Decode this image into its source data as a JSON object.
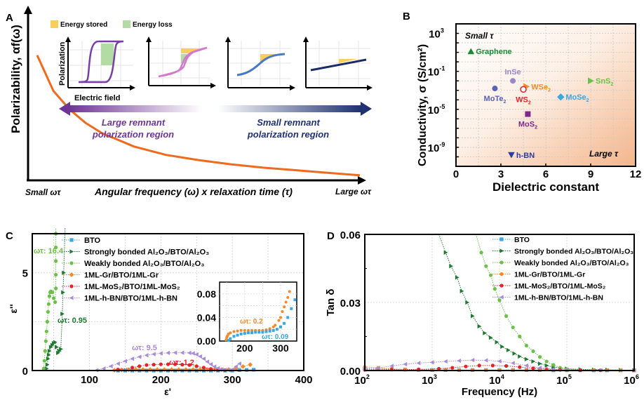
{
  "figure": {
    "panel_labels": [
      "A",
      "B",
      "C",
      "D"
    ]
  },
  "chart_data": [
    {
      "panel": "A",
      "type": "line",
      "title": "",
      "ylabel": "Polarizability, αf(ω)",
      "xlabel": "Angular frequency (ω) x relaxation time (τ)",
      "x_left_label": "Small ωτ",
      "x_right_label": "Large ωτ",
      "curve": {
        "name": "polarizability",
        "color": "#f06a1e",
        "x": [
          0.0,
          0.05,
          0.1,
          0.15,
          0.2,
          0.3,
          0.4,
          0.5,
          0.6,
          0.7,
          0.8,
          0.9,
          1.0
        ],
        "y": [
          0.74,
          0.53,
          0.42,
          0.34,
          0.28,
          0.2,
          0.15,
          0.12,
          0.095,
          0.075,
          0.06,
          0.045,
          0.03
        ]
      },
      "inset_legend": [
        {
          "label": "Energy stored",
          "color": "#f7cf5a"
        },
        {
          "label": "Energy loss",
          "color": "#b3dba4"
        }
      ],
      "inset_axes": {
        "ylabel": "Polarization",
        "xlabel": "Electric field"
      },
      "insets": [
        {
          "loop": "wide-hysteresis",
          "color": "#7a3fa6"
        },
        {
          "loop": "narrow-hysteresis",
          "color": "#d27ac9"
        },
        {
          "loop": "s-curve",
          "color": "#4a79c2"
        },
        {
          "loop": "linear",
          "color": "#1c2b63"
        }
      ],
      "arrows": [
        {
          "direction": "left",
          "label_line1": "Large remnant",
          "label_line2": "polarization region",
          "color": "#6f3596"
        },
        {
          "direction": "right",
          "label_line1": "Small remnant",
          "label_line2": "polarization region",
          "color": "#1f3170"
        }
      ]
    },
    {
      "panel": "B",
      "type": "scatter",
      "xlabel": "Dielectric constant",
      "ylabel": "Conductivity, σ (S/cm²)",
      "xlim": [
        0,
        12
      ],
      "ylim_log10": [
        -11,
        4
      ],
      "xticks": [
        0,
        3,
        6,
        9,
        12
      ],
      "yticks": [
        {
          "value": 3,
          "label": "10",
          "exp": "3"
        },
        {
          "value": -1,
          "label": "10",
          "exp": "-1"
        },
        {
          "value": -5,
          "label": "10",
          "exp": "-5"
        },
        {
          "value": -9,
          "label": "10",
          "exp": "-9"
        }
      ],
      "corner_labels": {
        "top_left": "Small τ",
        "bottom_right": "Large τ"
      },
      "grid": true,
      "points": [
        {
          "name": "Graphene",
          "sub": "",
          "x": 1.0,
          "log10y": 1.1,
          "marker": "triangle-up",
          "color": "#1d8a33"
        },
        {
          "name": "InSe",
          "sub": "",
          "x": 3.8,
          "log10y": -2.0,
          "marker": "half-circle",
          "color": "#9a86c8",
          "label_pos": "above"
        },
        {
          "name": "WSe",
          "sub": "2",
          "x": 4.7,
          "log10y": -2.6,
          "marker": "half-triangle",
          "color": "#f2892a"
        },
        {
          "name": "WS",
          "sub": "2",
          "x": 4.5,
          "log10y": -2.9,
          "marker": "half-circle-open",
          "color": "#e2232a",
          "label_pos": "below"
        },
        {
          "name": "MoTe",
          "sub": "2",
          "x": 2.6,
          "log10y": -2.8,
          "marker": "half-circle",
          "color": "#5a63b5",
          "label_pos": "below"
        },
        {
          "name": "MoSe",
          "sub": "2",
          "x": 7.0,
          "log10y": -3.7,
          "marker": "half-diamond",
          "color": "#3ba6df"
        },
        {
          "name": "SnS",
          "sub": "2",
          "x": 9.0,
          "log10y": -2.0,
          "marker": "triangle-right",
          "color": "#6cc04a"
        },
        {
          "name": "MoS",
          "sub": "2",
          "x": 4.8,
          "log10y": -5.5,
          "marker": "half-square",
          "color": "#7d2a8a",
          "label_pos": "below"
        },
        {
          "name": "h-BN",
          "sub": "",
          "x": 3.7,
          "log10y": -9.8,
          "marker": "triangle-down",
          "color": "#2b3fa3"
        }
      ]
    },
    {
      "panel": "C",
      "type": "scatter",
      "xlabel": "ε'",
      "ylabel": "ε''",
      "xlim": [
        20,
        400
      ],
      "ylim": [
        0,
        7
      ],
      "xticks": [
        100,
        200,
        300,
        400
      ],
      "yticks": [
        0,
        5
      ],
      "grid": true,
      "legend_position": "top-left",
      "series": [
        {
          "name": "BTO",
          "color": "#3ba6df",
          "marker": "square",
          "x": [
            140,
            150,
            160,
            170,
            180,
            190,
            200,
            210,
            220,
            230,
            240,
            250,
            260,
            270,
            280,
            290,
            300,
            310,
            320,
            330
          ],
          "y": [
            0,
            0,
            0,
            0,
            0,
            0,
            0,
            0,
            0,
            0,
            0,
            0,
            0,
            0,
            0,
            0,
            0,
            0.02,
            0.03,
            0.04
          ]
        },
        {
          "name": "Strongly bonded Al₂O₃/BTO/Al₂O₃",
          "color": "#1e7a30",
          "marker": "triangle-right",
          "x": [
            40,
            41,
            42,
            43,
            44,
            46,
            48,
            50,
            52,
            54,
            56,
            58,
            60,
            62,
            63,
            64,
            66
          ],
          "y": [
            0.1,
            0.3,
            0.6,
            0.8,
            1.0,
            1.2,
            1.3,
            1.4,
            1.45,
            1.2,
            0.9,
            1.0,
            1.1,
            2.9,
            4.0,
            5.0,
            7.5
          ]
        },
        {
          "name": "Weakly bonded Al₂O₃/BTO/Al₂O₃",
          "color": "#6cc04a",
          "marker": "circle",
          "x": [
            36,
            37,
            38,
            39,
            40,
            41,
            42,
            43,
            44,
            45,
            46,
            48,
            50,
            52,
            53,
            53,
            53,
            53,
            53,
            53
          ],
          "y": [
            0.1,
            0.5,
            1.0,
            1.5,
            2.0,
            2.5,
            3.0,
            3.4,
            3.8,
            4.0,
            4.05,
            4.0,
            3.7,
            3.5,
            4.2,
            4.9,
            5.6,
            6.3,
            7.0,
            7.5
          ]
        },
        {
          "name": "1ML-Gr/BTO/1ML-Gr",
          "color": "#f2892a",
          "marker": "diamond",
          "x": [
            135,
            145,
            155,
            165,
            175,
            185,
            195,
            205,
            215,
            225,
            235,
            245,
            255,
            265,
            275,
            285,
            295,
            305,
            315,
            325
          ],
          "y": [
            0.02,
            0.03,
            0.04,
            0.05,
            0.05,
            0.05,
            0.05,
            0.05,
            0.05,
            0.05,
            0.05,
            0.05,
            0.05,
            0.05,
            0.05,
            0.05,
            0.05,
            0.1,
            0.2,
            0.3
          ]
        },
        {
          "name": "1ML-MoS₂/BTO/1ML-MoS₂",
          "color": "#e2232a",
          "marker": "circle",
          "x": [
            140,
            160,
            170,
            180,
            190,
            200,
            210,
            220,
            230,
            240,
            250,
            260,
            270,
            280,
            290
          ],
          "y": [
            0.05,
            0.15,
            0.22,
            0.28,
            0.3,
            0.32,
            0.32,
            0.32,
            0.3,
            0.28,
            0.22,
            0.15,
            0.08,
            0.04,
            0.02
          ]
        },
        {
          "name": "1ML-h-BN/BTO/1ML-h-BN",
          "color": "#a98bd6",
          "marker": "triangle-left",
          "x": [
            110,
            120,
            130,
            140,
            150,
            160,
            170,
            180,
            190,
            200,
            210,
            220,
            230,
            240,
            245,
            250,
            255,
            260,
            265,
            270,
            275,
            280,
            285,
            290,
            295,
            300,
            305,
            310
          ],
          "y": [
            0.02,
            0.1,
            0.22,
            0.35,
            0.48,
            0.6,
            0.7,
            0.78,
            0.84,
            0.88,
            0.9,
            0.91,
            0.91,
            0.9,
            0.88,
            0.82,
            0.72,
            0.6,
            0.45,
            0.32,
            0.2,
            0.12,
            0.06,
            0.03,
            0.02,
            0.05,
            0.2,
            0.35
          ]
        }
      ],
      "annotations": [
        {
          "text": "ωτ: 16.4",
          "color": "#6cc04a"
        },
        {
          "text": "ωτ: 0.95",
          "color": "#1e7a30"
        },
        {
          "text": "ωτ: 9.5",
          "color": "#a98bd6"
        },
        {
          "text": "ωτ: 1.2",
          "color": "#e2232a"
        }
      ],
      "inset": {
        "xlim": [
          130,
          345
        ],
        "ylim": [
          0,
          0.1
        ],
        "xticks": [
          200,
          300
        ],
        "yticks": [
          0.0,
          0.04,
          0.08
        ],
        "ytick_labels": [
          "0.00",
          "0.04",
          "0.08"
        ],
        "annotations": [
          {
            "text": "ωτ: 0.2",
            "color": "#f2892a"
          },
          {
            "text": "ωτ: 0.09",
            "color": "#3ba6df"
          }
        ],
        "series": [
          {
            "name": "1ML-Gr/BTO/1ML-Gr",
            "color": "#f2892a",
            "marker": "circle",
            "x": [
              148,
              150,
              152,
              155,
              160,
              170,
              180,
              190,
              200,
              210,
              220,
              230,
              240,
              250,
              260,
              270,
              280,
              285,
              295,
              300,
              305,
              310,
              315,
              320,
              325
            ],
            "y": [
              0.002,
              0.006,
              0.009,
              0.012,
              0.014,
              0.016,
              0.017,
              0.018,
              0.018,
              0.018,
              0.018,
              0.018,
              0.018,
              0.018,
              0.019,
              0.021,
              0.024,
              0.027,
              0.035,
              0.04,
              0.05,
              0.058,
              0.066,
              0.074,
              0.084
            ]
          },
          {
            "name": "BTO",
            "color": "#3ba6df",
            "marker": "square",
            "x": [
              155,
              160,
              170,
              180,
              190,
              200,
              210,
              220,
              230,
              240,
              250,
              260,
              270,
              280,
              290,
              300,
              310,
              320,
              330,
              340
            ],
            "y": [
              0.001,
              0.004,
              0.008,
              0.01,
              0.012,
              0.013,
              0.014,
              0.014,
              0.015,
              0.015,
              0.015,
              0.016,
              0.017,
              0.018,
              0.02,
              0.024,
              0.03,
              0.04,
              0.055,
              0.07
            ]
          }
        ]
      }
    },
    {
      "panel": "D",
      "type": "line",
      "xlabel": "Frequency (Hz)",
      "ylabel": "Tan δ",
      "xscale": "log",
      "xlim_log10": [
        2,
        6
      ],
      "ylim": [
        0,
        0.06
      ],
      "xticks": [
        {
          "value": 2,
          "label": "10",
          "exp": "2"
        },
        {
          "value": 3,
          "label": "10",
          "exp": "3"
        },
        {
          "value": 4,
          "label": "10",
          "exp": "4"
        },
        {
          "value": 5,
          "label": "10",
          "exp": "5"
        },
        {
          "value": 6,
          "label": "10",
          "exp": "6"
        }
      ],
      "yticks": [
        0.0,
        0.03,
        0.06
      ],
      "ytick_labels": [
        "0.00",
        "0.03",
        "0.06"
      ],
      "grid": true,
      "legend_position": "top-right",
      "series": [
        {
          "name": "BTO",
          "color": "#3ba6df",
          "marker": "square",
          "log10x": [
            2.0,
            2.2,
            2.4,
            2.6,
            2.8,
            3.0,
            3.2,
            3.4,
            3.6,
            3.8,
            4.0,
            4.2,
            4.4,
            4.6,
            4.8,
            5.0,
            5.2,
            5.4,
            5.6,
            5.8,
            6.0
          ],
          "y": [
            0.001,
            0.0008,
            0.0006,
            0.0004,
            0.0003,
            0.0002,
            0.0002,
            0.0002,
            0.0002,
            0.0002,
            0.0002,
            0.0002,
            0.0002,
            0.0002,
            0.0001,
            0.0001,
            0.0001,
            0.0001,
            0.0001,
            0.0001,
            0.0001
          ]
        },
        {
          "name": "Strongly bonded Al₂O₃/BTO/Al₂O₃",
          "color": "#1e7a30",
          "marker": "triangle-right",
          "log10x": [
            3.1,
            3.2,
            3.28,
            3.37,
            3.44,
            3.52,
            3.6,
            3.7,
            3.78,
            3.87,
            3.96,
            4.04,
            4.13,
            4.22,
            4.3,
            4.4,
            4.5,
            4.6,
            4.7,
            4.8,
            5.0,
            5.2,
            5.4,
            5.6,
            5.8,
            6.0
          ],
          "y": [
            0.0605,
            0.052,
            0.046,
            0.041,
            0.035,
            0.03,
            0.024,
            0.0195,
            0.0165,
            0.0145,
            0.0125,
            0.0105,
            0.009,
            0.0075,
            0.0062,
            0.005,
            0.004,
            0.003,
            0.0022,
            0.0015,
            0.0008,
            0.0005,
            0.0004,
            0.0003,
            0.0002,
            0.0001
          ]
        },
        {
          "name": "Weakly bonded Al₂O₃/BTO/Al₂O₃",
          "color": "#6cc04a",
          "marker": "circle",
          "log10x": [
            3.65,
            3.73,
            3.8,
            3.87,
            3.93,
            4.0,
            4.1,
            4.2,
            4.3,
            4.4,
            4.5,
            4.6,
            4.7,
            4.8,
            4.9,
            5.0,
            5.2,
            5.4,
            5.6,
            5.8,
            6.0
          ],
          "y": [
            0.0605,
            0.052,
            0.046,
            0.042,
            0.036,
            0.031,
            0.024,
            0.019,
            0.015,
            0.011,
            0.0085,
            0.006,
            0.004,
            0.0025,
            0.0012,
            0.0006,
            0.0003,
            0.0002,
            0.0001,
            0.0001,
            0.0001
          ]
        },
        {
          "name": "1ML-Gr/BTO/1ML-Gr",
          "color": "#f2892a",
          "marker": "circle",
          "log10x": [
            2.0,
            2.2,
            2.4,
            2.6,
            2.8,
            3.0,
            3.2,
            3.4,
            3.6,
            3.8,
            4.0,
            4.2,
            4.4,
            4.6,
            4.8,
            5.0,
            5.2,
            5.4,
            5.6,
            5.8,
            6.0
          ],
          "y": [
            0.0016,
            0.0012,
            0.0008,
            0.0005,
            0.0003,
            0.0002,
            0.0002,
            0.0002,
            0.0002,
            0.0002,
            0.0002,
            0.0002,
            0.0002,
            0.0002,
            0.0001,
            0.0001,
            0.0001,
            0.0001,
            0.0001,
            0.0001,
            0.0001
          ]
        },
        {
          "name": "1ML-MoS₂/BTO/1ML-MoS₂",
          "color": "#e2232a",
          "marker": "circle",
          "log10x": [
            2.0,
            2.4,
            2.8,
            3.1,
            3.3,
            3.5,
            3.7,
            3.9,
            4.1,
            4.3,
            4.5,
            4.7,
            4.9,
            5.2,
            5.5,
            6.0
          ],
          "y": [
            0.0003,
            0.0004,
            0.0005,
            0.0008,
            0.0012,
            0.0018,
            0.0022,
            0.0022,
            0.002,
            0.0015,
            0.001,
            0.0006,
            0.0003,
            0.0002,
            0.0001,
            0.0001
          ]
        },
        {
          "name": "1ML-h-BN/BTO/1ML-h-BN",
          "color": "#a98bd6",
          "marker": "triangle-left",
          "log10x": [
            2.0,
            2.2,
            2.4,
            2.6,
            2.8,
            3.0,
            3.2,
            3.4,
            3.6,
            3.8,
            4.0,
            4.2,
            4.4,
            4.6,
            4.8,
            5.0,
            5.5,
            6.0
          ],
          "y": [
            0.0005,
            0.0012,
            0.002,
            0.0028,
            0.0033,
            0.0036,
            0.004,
            0.0043,
            0.0046,
            0.0045,
            0.0041,
            0.0033,
            0.0022,
            0.0012,
            0.0006,
            0.0003,
            0.0001,
            0.0001
          ]
        }
      ]
    }
  ]
}
